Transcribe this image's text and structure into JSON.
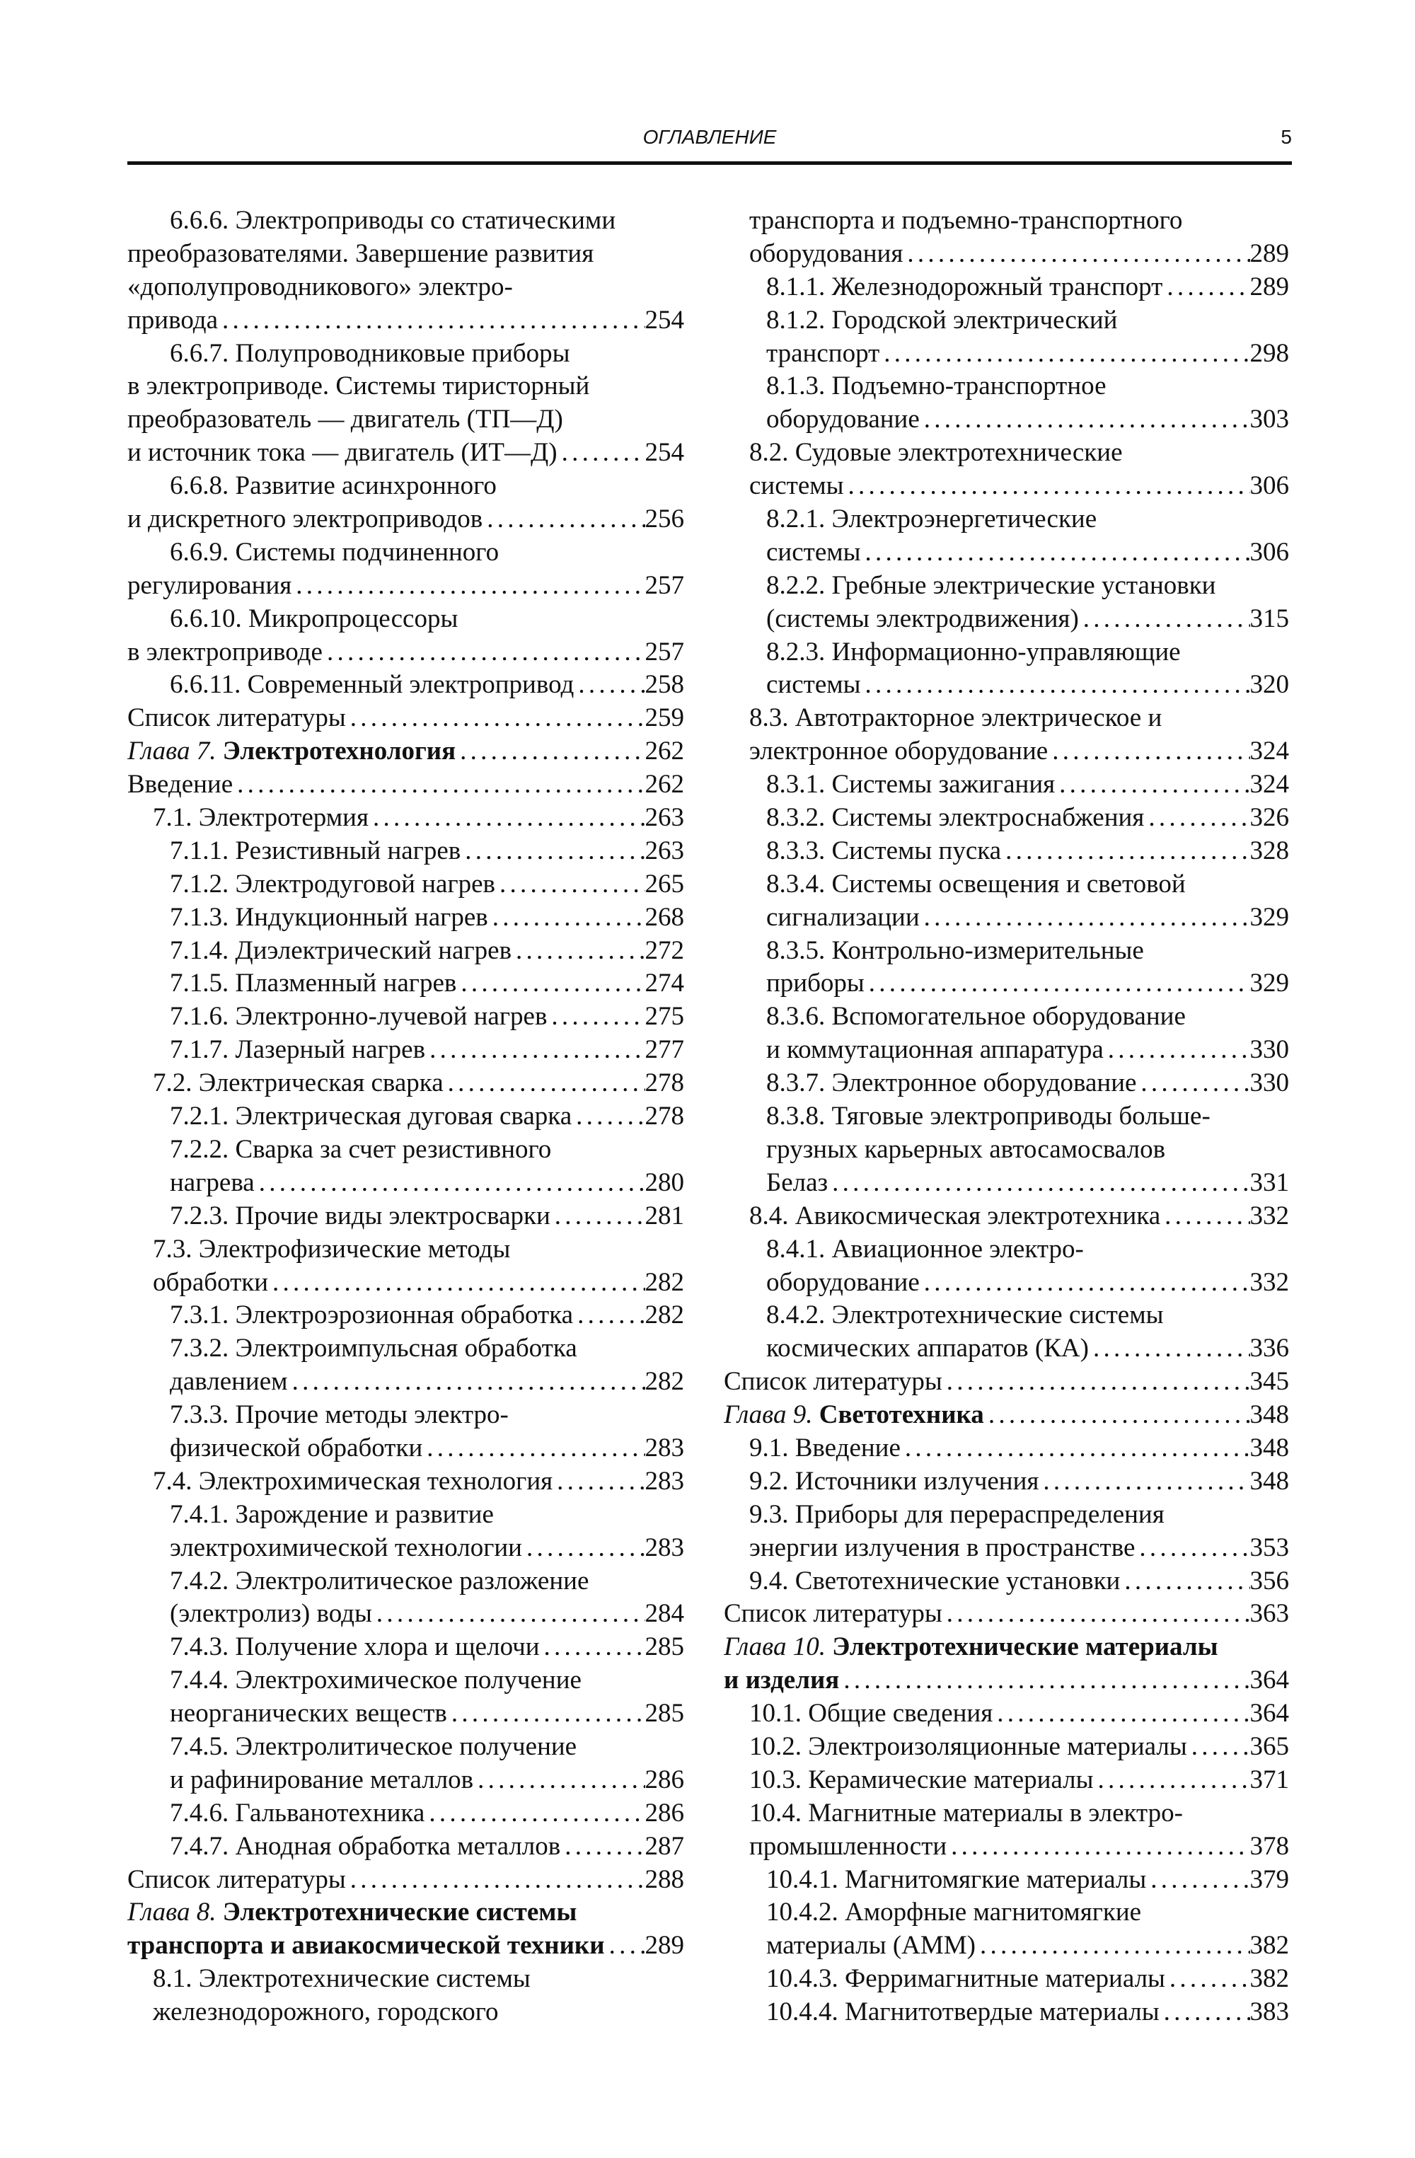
{
  "header": {
    "title": "ОГЛАВЛЕНИЕ",
    "page_number": "5"
  },
  "columns": [
    {
      "entries": [
        {
          "level": 2,
          "hang": true,
          "lines": [
            "6.6.6. Электроприводы со статическими",
            "преобразователями. Завершение развития",
            "«дополупроводникового» электро-",
            "привода"
          ],
          "page": "254"
        },
        {
          "level": 2,
          "hang": true,
          "lines": [
            "6.6.7. Полупроводниковые приборы",
            "в электроприводе. Системы тиристорный",
            "преобразователь — двигатель (ТП—Д)",
            "и источник тока — двигатель (ИТ—Д)"
          ],
          "page": "254"
        },
        {
          "level": 2,
          "hang": true,
          "lines": [
            "6.6.8. Развитие асинхронного",
            "и дискретного электроприводов"
          ],
          "page": "256"
        },
        {
          "level": 2,
          "hang": true,
          "lines": [
            "6.6.9. Системы подчиненного",
            "регулирования"
          ],
          "page": "257"
        },
        {
          "level": 2,
          "hang": true,
          "lines": [
            "6.6.10. Микропроцессоры",
            "в электроприводе"
          ],
          "page": "257"
        },
        {
          "level": 2,
          "lines": [
            "6.6.11. Современный электропривод"
          ],
          "page": "258"
        },
        {
          "level": 0,
          "lines": [
            "Список литературы"
          ],
          "page": "259"
        },
        {
          "level": 0,
          "chapter_label": "Глава 7.",
          "lines": [
            "Электротехнология"
          ],
          "page": "262"
        },
        {
          "level": 0,
          "lines": [
            "Введение"
          ],
          "page": "262"
        },
        {
          "level": 1,
          "lines": [
            "7.1. Электротермия"
          ],
          "page": "263"
        },
        {
          "level": 2,
          "lines": [
            "7.1.1. Резистивный нагрев"
          ],
          "page": "263"
        },
        {
          "level": 2,
          "lines": [
            "7.1.2. Электродуговой нагрев"
          ],
          "page": "265"
        },
        {
          "level": 2,
          "lines": [
            "7.1.3. Индукционный нагрев"
          ],
          "page": "268"
        },
        {
          "level": 2,
          "lines": [
            "7.1.4. Диэлектрический нагрев"
          ],
          "page": "272"
        },
        {
          "level": 2,
          "lines": [
            "7.1.5. Плазменный нагрев"
          ],
          "page": "274"
        },
        {
          "level": 2,
          "lines": [
            "7.1.6. Электронно-лучевой нагрев"
          ],
          "page": "275"
        },
        {
          "level": 2,
          "lines": [
            "7.1.7. Лазерный нагрев"
          ],
          "page": "277"
        },
        {
          "level": 1,
          "lines": [
            "7.2. Электрическая сварка"
          ],
          "page": "278"
        },
        {
          "level": 2,
          "lines": [
            "7.2.1. Электрическая дуговая сварка"
          ],
          "page": "278"
        },
        {
          "level": 2,
          "lines": [
            "7.2.2. Сварка за счет резистивного",
            "нагрева"
          ],
          "page": "280"
        },
        {
          "level": 2,
          "lines": [
            "7.2.3. Прочие виды электросварки"
          ],
          "page": "281"
        },
        {
          "level": 1,
          "lines": [
            "7.3. Электрофизические методы",
            "обработки"
          ],
          "page": "282"
        },
        {
          "level": 2,
          "lines": [
            "7.3.1. Электроэрозионная обработка"
          ],
          "page": "282"
        },
        {
          "level": 2,
          "lines": [
            "7.3.2. Электроимпульсная обработка",
            "давлением"
          ],
          "page": "282"
        },
        {
          "level": 2,
          "lines": [
            "7.3.3. Прочие методы электро-",
            "физической обработки"
          ],
          "page": "283"
        },
        {
          "level": 1,
          "lines": [
            "7.4. Электрохимическая технология"
          ],
          "page": "283"
        },
        {
          "level": 2,
          "lines": [
            "7.4.1. Зарождение и развитие",
            "электрохимической технологии"
          ],
          "page": "283"
        },
        {
          "level": 2,
          "lines": [
            "7.4.2. Электролитическое разложение",
            "(электролиз) воды"
          ],
          "page": "284"
        },
        {
          "level": 2,
          "lines": [
            "7.4.3. Получение хлора и щелочи"
          ],
          "page": "285"
        },
        {
          "level": 2,
          "lines": [
            "7.4.4. Электрохимическое получение",
            "неорганических веществ"
          ],
          "page": "285"
        },
        {
          "level": 2,
          "lines": [
            "7.4.5. Электролитическое получение",
            "и рафинирование металлов"
          ],
          "page": "286"
        },
        {
          "level": 2,
          "lines": [
            "7.4.6. Гальванотехника"
          ],
          "page": "286"
        },
        {
          "level": 2,
          "lines": [
            "7.4.7. Анодная обработка металлов"
          ],
          "page": "287"
        },
        {
          "level": 0,
          "lines": [
            "Список литературы"
          ],
          "page": "288"
        },
        {
          "level": 0,
          "chapter_label": "Глава 8.",
          "lines": [
            "Электротехнические системы",
            "транспорта и авиакосмической техники"
          ],
          "page": "289"
        },
        {
          "level": 1,
          "lines": [
            "8.1. Электротехнические системы",
            "железнодорожного, городского"
          ]
        }
      ]
    },
    {
      "entries": [
        {
          "level": 1,
          "lines": [
            "транспорта и подъемно-транспортного",
            "оборудования"
          ],
          "page": "289"
        },
        {
          "level": 2,
          "lines": [
            "8.1.1. Железнодорожный транспорт"
          ],
          "page": "289"
        },
        {
          "level": 2,
          "lines": [
            "8.1.2. Городской электрический",
            "транспорт"
          ],
          "page": "298"
        },
        {
          "level": 2,
          "lines": [
            "8.1.3. Подъемно-транспортное",
            "оборудование"
          ],
          "page": "303"
        },
        {
          "level": 1,
          "lines": [
            "8.2. Судовые электротехнические",
            "системы"
          ],
          "page": "306"
        },
        {
          "level": 2,
          "lines": [
            "8.2.1. Электроэнергетические",
            "системы"
          ],
          "page": "306"
        },
        {
          "level": 2,
          "lines": [
            "8.2.2. Гребные электрические установки",
            "(системы электродвижения)"
          ],
          "page": "315"
        },
        {
          "level": 2,
          "lines": [
            "8.2.3. Информационно-управляющие",
            "системы"
          ],
          "page": "320"
        },
        {
          "level": 1,
          "lines": [
            "8.3. Автотракторное электрическое и",
            "электронное оборудование"
          ],
          "page": "324"
        },
        {
          "level": 2,
          "lines": [
            "8.3.1. Системы зажигания"
          ],
          "page": "324"
        },
        {
          "level": 2,
          "lines": [
            "8.3.2. Системы электроснабжения"
          ],
          "page": "326"
        },
        {
          "level": 2,
          "lines": [
            "8.3.3. Системы пуска"
          ],
          "page": "328"
        },
        {
          "level": 2,
          "lines": [
            "8.3.4. Системы освещения и световой",
            "сигнализации"
          ],
          "page": "329"
        },
        {
          "level": 2,
          "lines": [
            "8.3.5. Контрольно-измерительные",
            "приборы"
          ],
          "page": "329"
        },
        {
          "level": 2,
          "lines": [
            "8.3.6. Вспомогательное оборудование",
            "и коммутационная аппаратура"
          ],
          "page": "330"
        },
        {
          "level": 2,
          "lines": [
            "8.3.7. Электронное оборудование"
          ],
          "page": "330"
        },
        {
          "level": 2,
          "lines": [
            "8.3.8. Тяговые электроприводы больше-",
            "грузных карьерных автосамосвалов",
            "Белаз"
          ],
          "page": "331"
        },
        {
          "level": 1,
          "lines": [
            "8.4. Авикосмическая электротехника"
          ],
          "page": "332"
        },
        {
          "level": 2,
          "lines": [
            "8.4.1. Авиационное электро-",
            "оборудование"
          ],
          "page": "332"
        },
        {
          "level": 2,
          "lines": [
            "8.4.2. Электротехнические системы",
            "космических аппаратов (КА)"
          ],
          "page": "336"
        },
        {
          "level": 0,
          "lines": [
            "Список литературы"
          ],
          "page": "345"
        },
        {
          "level": 0,
          "chapter_label": "Глава 9.",
          "lines": [
            "Светотехника"
          ],
          "page": "348"
        },
        {
          "level": 1,
          "lines": [
            "9.1. Введение"
          ],
          "page": "348"
        },
        {
          "level": 1,
          "lines": [
            "9.2. Источники излучения"
          ],
          "page": "348"
        },
        {
          "level": 1,
          "lines": [
            "9.3. Приборы для перераспределения",
            "энергии излучения в пространстве"
          ],
          "page": "353"
        },
        {
          "level": 1,
          "lines": [
            "9.4. Светотехнические установки"
          ],
          "page": "356"
        },
        {
          "level": 0,
          "lines": [
            "Список литературы"
          ],
          "page": "363"
        },
        {
          "level": 0,
          "chapter_label": "Глава 10.",
          "lines": [
            "Электротехнические материалы",
            "и изделия"
          ],
          "page": "364"
        },
        {
          "level": 1,
          "lines": [
            "10.1. Общие сведения"
          ],
          "page": "364"
        },
        {
          "level": 1,
          "lines": [
            "10.2. Электроизоляционные материалы"
          ],
          "page": "365"
        },
        {
          "level": 1,
          "lines": [
            "10.3. Керамические материалы"
          ],
          "page": "371"
        },
        {
          "level": 1,
          "lines": [
            "10.4. Магнитные материалы в электро-",
            "промышленности"
          ],
          "page": "378"
        },
        {
          "level": 2,
          "lines": [
            "10.4.1. Магнитомягкие материалы"
          ],
          "page": "379"
        },
        {
          "level": 2,
          "lines": [
            "10.4.2. Аморфные магнитомягкие",
            "материалы (АММ)"
          ],
          "page": "382"
        },
        {
          "level": 2,
          "lines": [
            "10.4.3. Ферримагнитные материалы"
          ],
          "page": "382"
        },
        {
          "level": 2,
          "lines": [
            "10.4.4. Магнитотвердые материалы"
          ],
          "page": "383"
        }
      ]
    }
  ]
}
